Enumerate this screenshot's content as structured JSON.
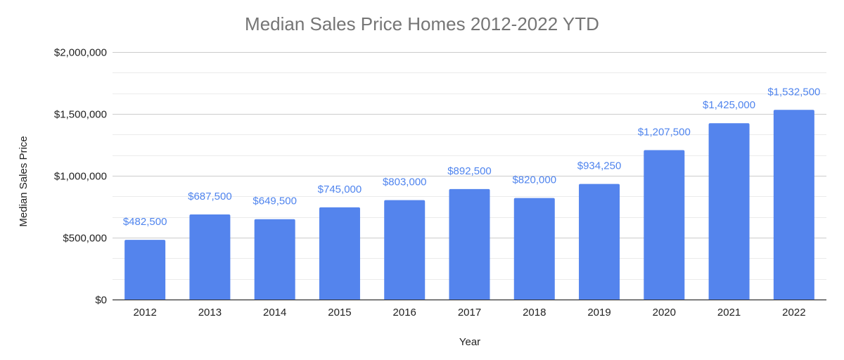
{
  "chart_data": {
    "type": "bar",
    "title": "Median Sales Price Homes 2012-2022 YTD",
    "xlabel": "Year",
    "ylabel": "Median Sales Price",
    "categories": [
      "2012",
      "2013",
      "2014",
      "2015",
      "2016",
      "2017",
      "2018",
      "2019",
      "2020",
      "2021",
      "2022"
    ],
    "values": [
      482500,
      687500,
      649500,
      745000,
      803000,
      892500,
      820000,
      934250,
      1207500,
      1425000,
      1532500
    ],
    "data_labels": [
      "$482,500",
      "$687,500",
      "$649,500",
      "$745,000",
      "$803,000",
      "$892,500",
      "$820,000",
      "$934,250",
      "$1,207,500",
      "$1,425,000",
      "$1,532,500"
    ],
    "ylim": [
      0,
      2000000
    ],
    "y_ticks": [
      0,
      500000,
      1000000,
      1500000,
      2000000
    ],
    "y_tick_labels": [
      "$0",
      "$500,000",
      "$1,000,000",
      "$1,500,000",
      "$2,000,000"
    ],
    "minor_gridlines": [
      166667,
      333333,
      666667,
      833333,
      1166667,
      1333333,
      1666667,
      1833333
    ],
    "grid": true,
    "legend": "none",
    "colors": {
      "bar": "#5484ED",
      "data_label": "#4F84EE",
      "major_grid": "#CCCCCC",
      "minor_grid": "#EBEBEB",
      "baseline": "#333333",
      "title": "#757575",
      "text": "#222222"
    }
  }
}
